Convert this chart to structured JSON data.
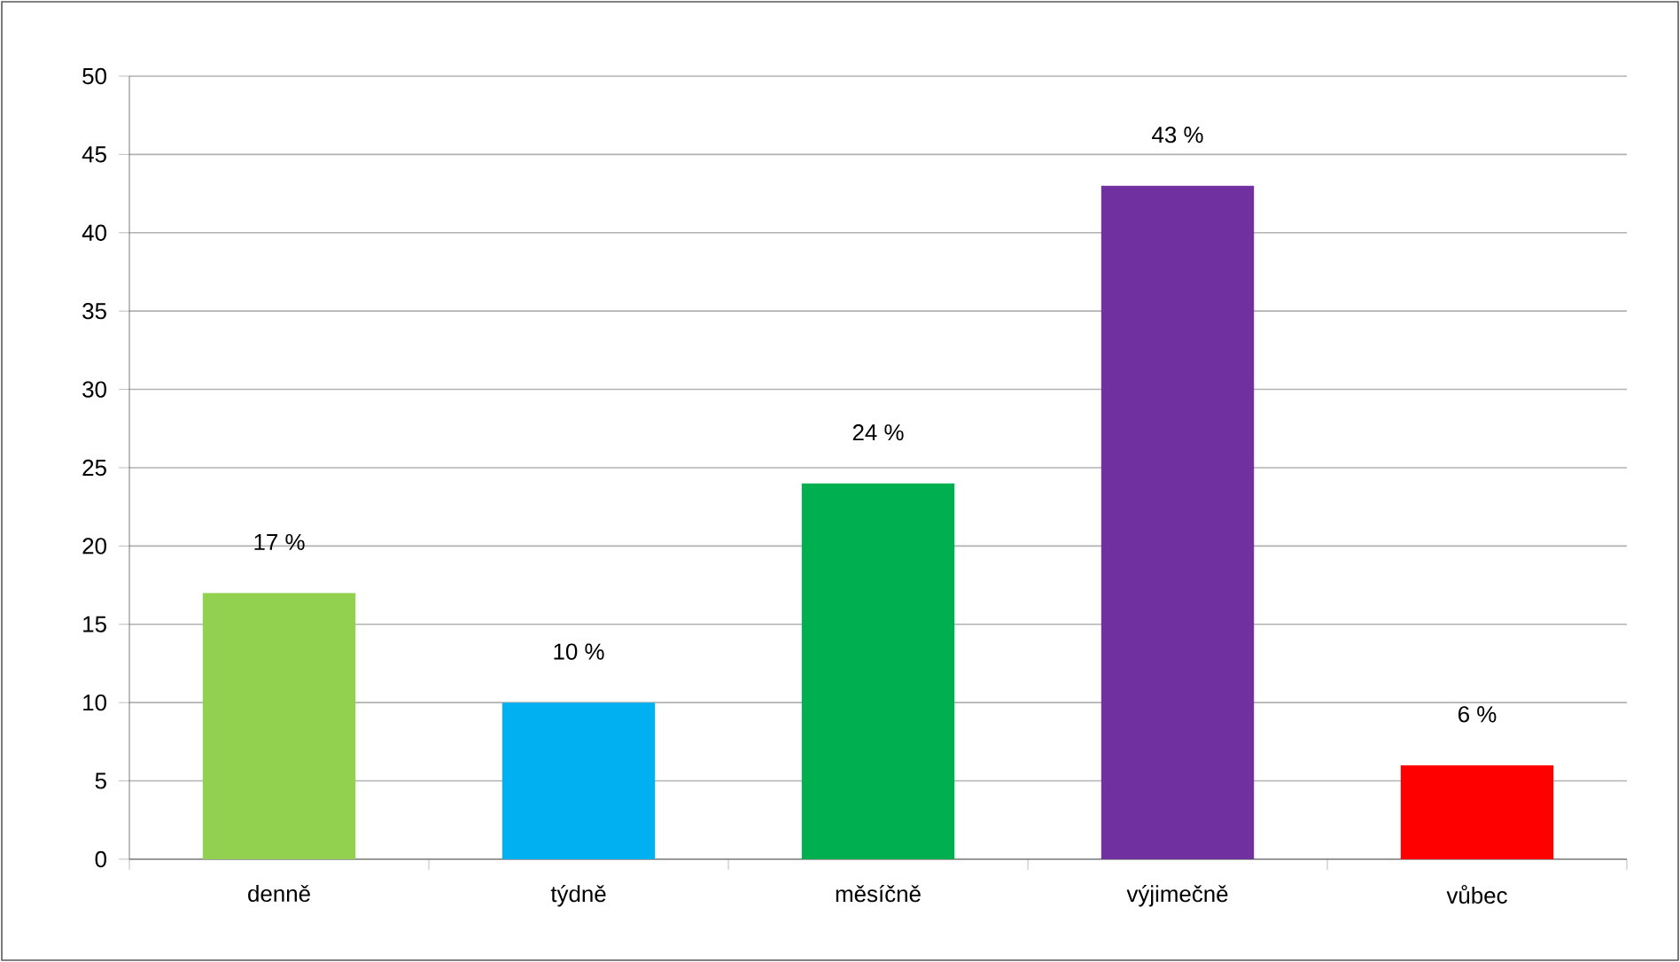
{
  "chart_data": {
    "type": "bar",
    "categories": [
      "denně",
      "týdně",
      "měsíčně",
      "výjimečně",
      "vůbec"
    ],
    "values": [
      17,
      10,
      24,
      43,
      6
    ],
    "colors": [
      "#92d050",
      "#00b0f0",
      "#00b050",
      "#7030a0",
      "#ff0000"
    ],
    "value_labels": [
      "17 %",
      "10 %",
      "24 %",
      "43 %",
      "6 %"
    ],
    "ylim": [
      0,
      50
    ],
    "yticks": [
      0,
      5,
      10,
      15,
      20,
      25,
      30,
      35,
      40,
      45,
      50
    ],
    "grid": "y"
  }
}
